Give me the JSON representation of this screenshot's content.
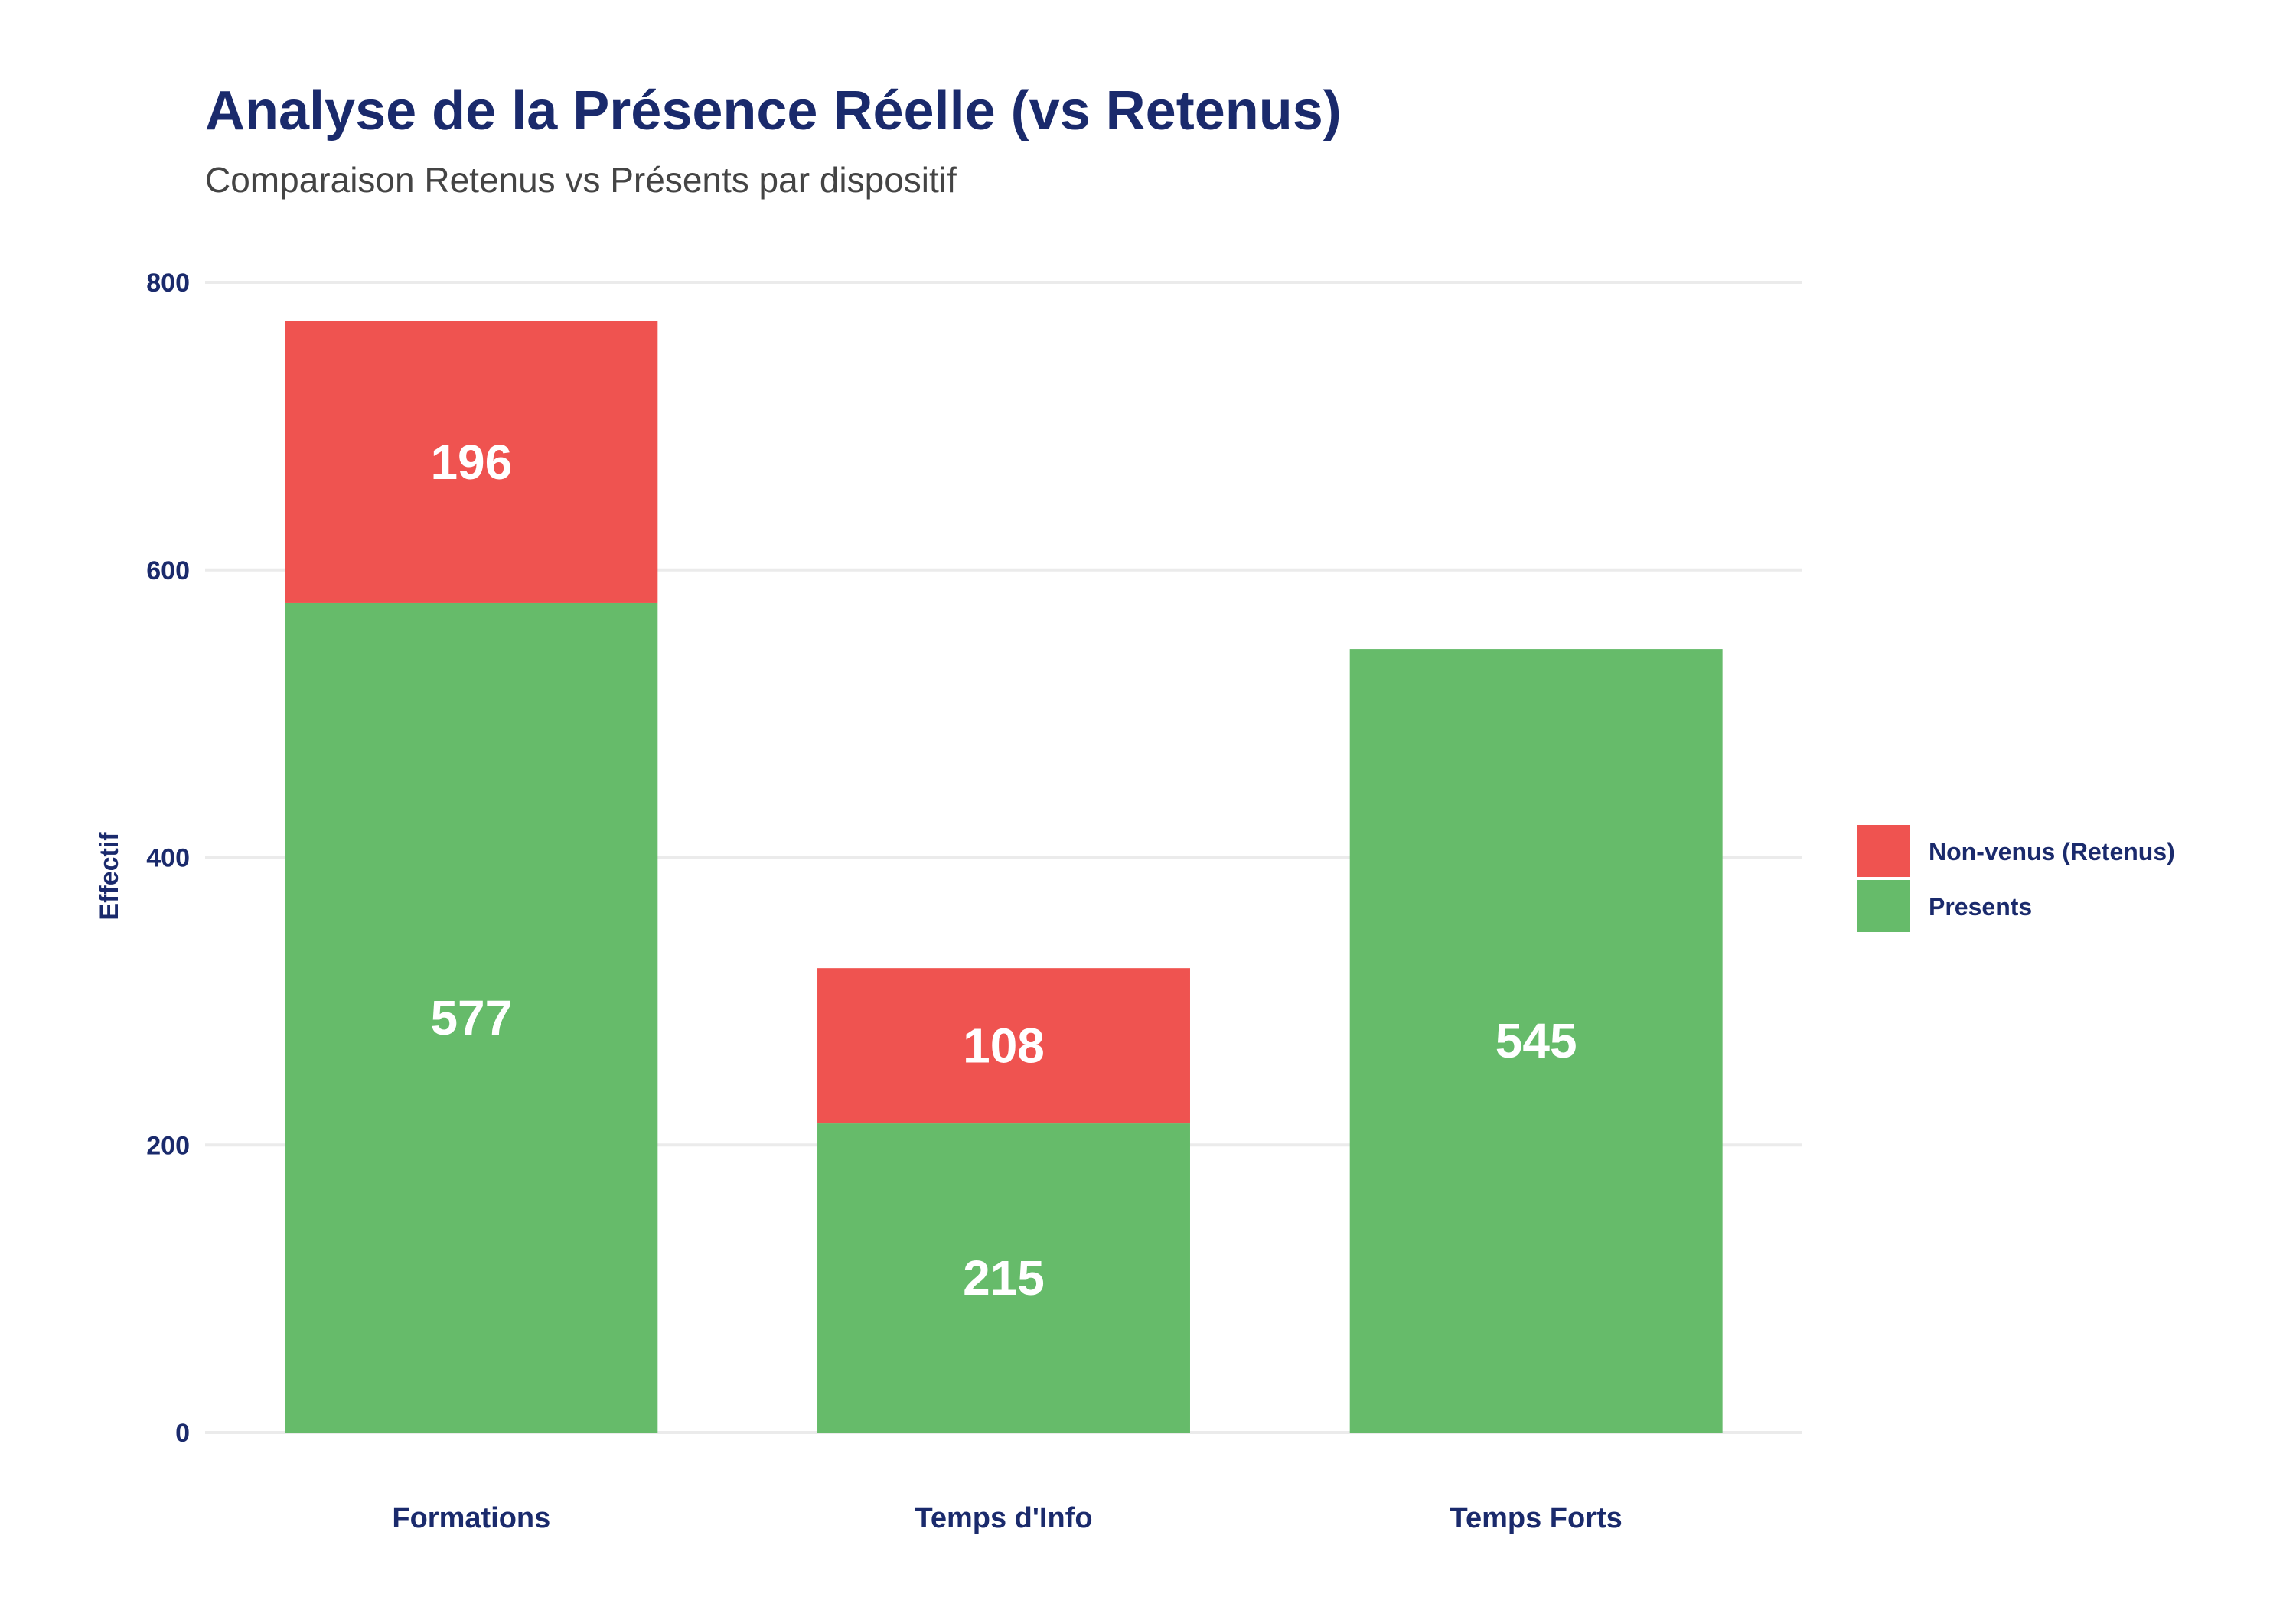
{
  "chart_data": {
    "type": "bar",
    "stacked": true,
    "title": "Analyse de la Présence Réelle (vs Retenus)",
    "subtitle": "Comparaison Retenus vs Présents par dispositif",
    "xlabel": "",
    "ylabel": "Effectif",
    "ylim": [
      0,
      800
    ],
    "yticks": [
      0,
      200,
      400,
      600,
      800
    ],
    "grid": true,
    "legend_position": "right",
    "categories": [
      "Formations",
      "Temps d'Info",
      "Temps Forts"
    ],
    "series": [
      {
        "name": "Presents",
        "color": "#66bb6a",
        "values": [
          577,
          215,
          545
        ]
      },
      {
        "name": "Non-venus (Retenus)",
        "color": "#ef5350",
        "values": [
          196,
          108,
          0
        ]
      }
    ],
    "legend_order": [
      "Non-venus (Retenus)",
      "Presents"
    ]
  }
}
